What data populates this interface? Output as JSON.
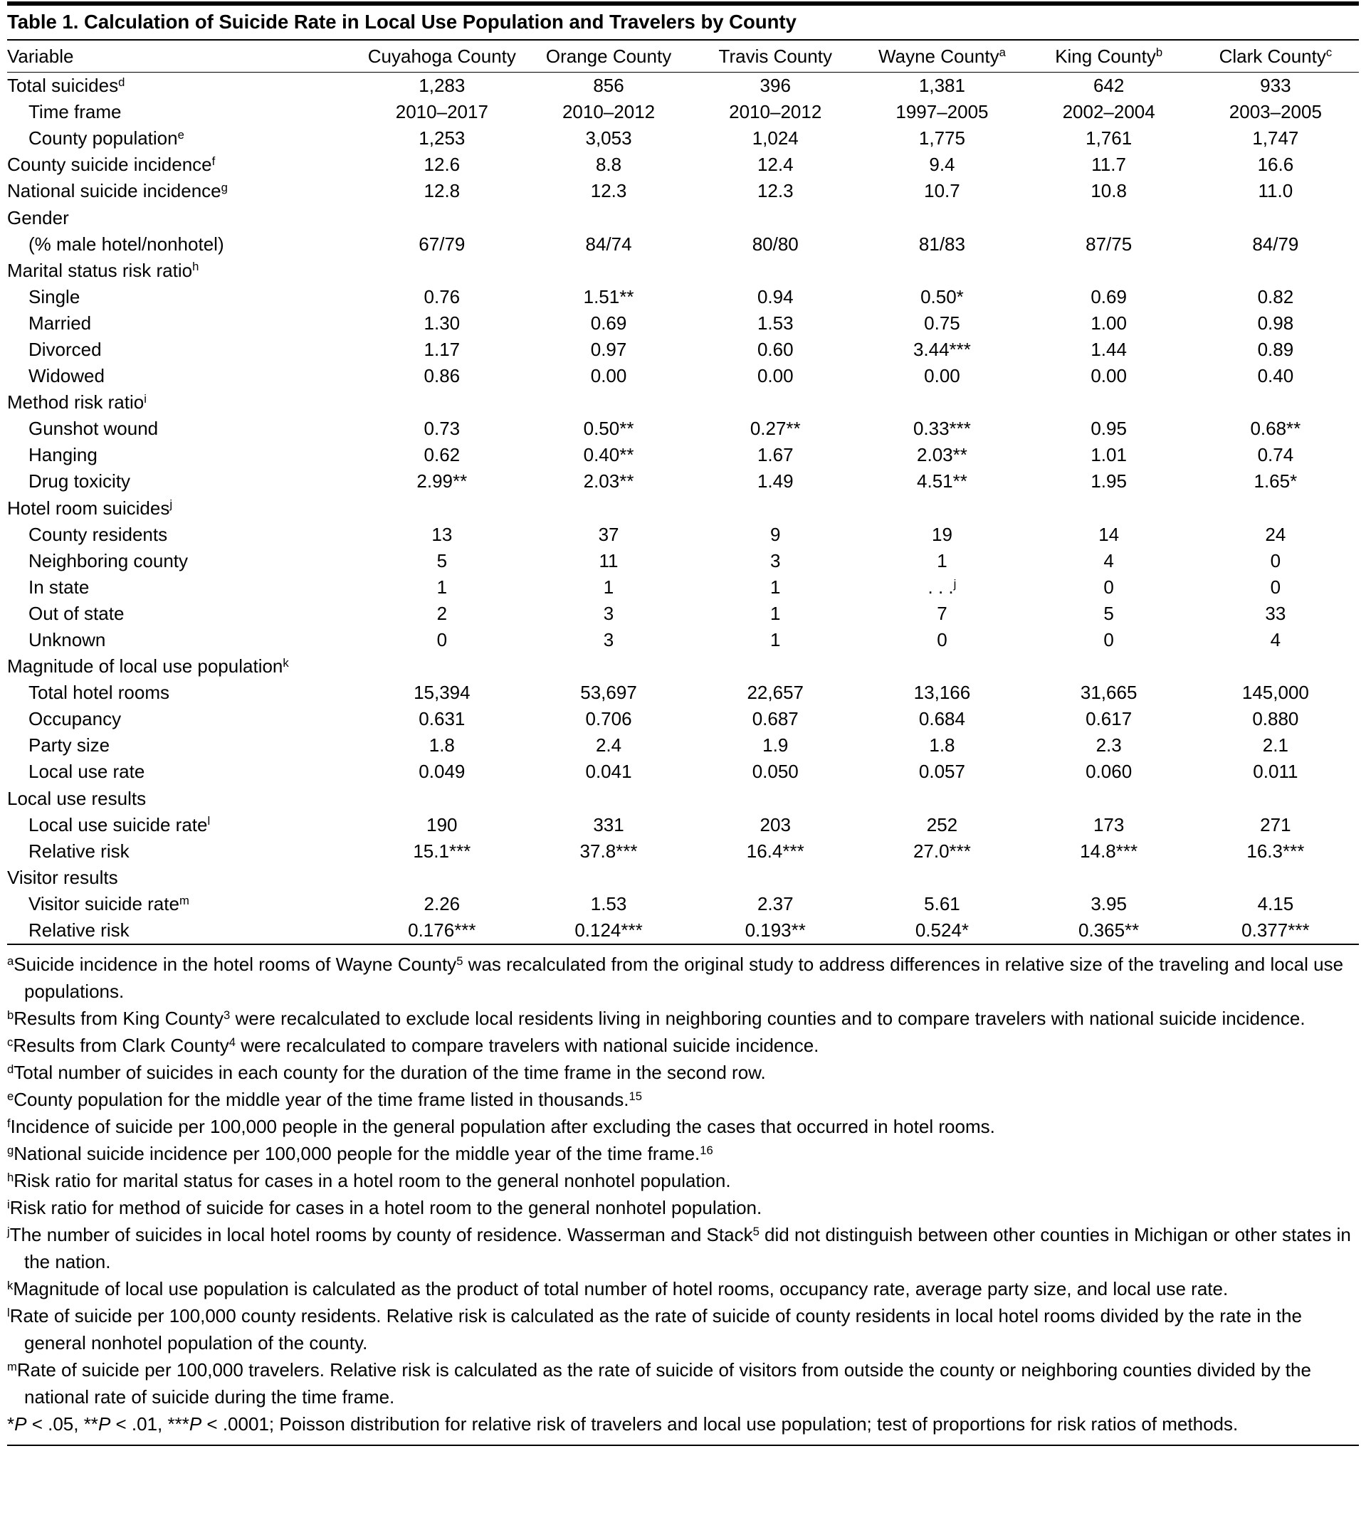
{
  "table": {
    "title": "Table 1. Calculation of Suicide Rate in Local Use Population and Travelers by County",
    "columns": [
      "Variable",
      "Cuyahoga County",
      "Orange County",
      "Travis County",
      "Wayne County^{a}",
      "King County^{b}",
      "Clark County^{c}"
    ],
    "rows": [
      {
        "label": "Total suicides^{d}",
        "indent": 0,
        "values": [
          "1,283",
          "856",
          "396",
          "1,381",
          "642",
          "933"
        ]
      },
      {
        "label": "Time frame",
        "indent": 1,
        "values": [
          "2010–2017",
          "2010–2012",
          "2010–2012",
          "1997–2005",
          "2002–2004",
          "2003–2005"
        ]
      },
      {
        "label": "County population^{e}",
        "indent": 1,
        "values": [
          "1,253",
          "3,053",
          "1,024",
          "1,775",
          "1,761",
          "1,747"
        ]
      },
      {
        "label": "County suicide incidence^{f}",
        "indent": 0,
        "values": [
          "12.6",
          "8.8",
          "12.4",
          "9.4",
          "11.7",
          "16.6"
        ]
      },
      {
        "label": "National suicide incidence^{g}",
        "indent": 0,
        "values": [
          "12.8",
          "12.3",
          "12.3",
          "10.7",
          "10.8",
          "11.0"
        ]
      },
      {
        "label": "Gender",
        "indent": 0,
        "section": true,
        "values": []
      },
      {
        "label": "(% male hotel/nonhotel)",
        "indent": 1,
        "values": [
          "67/79",
          "84/74",
          "80/80",
          "81/83",
          "87/75",
          "84/79"
        ]
      },
      {
        "label": "Marital status risk ratio^{h}",
        "indent": 0,
        "section": true,
        "values": []
      },
      {
        "label": "Single",
        "indent": 1,
        "values": [
          "0.76",
          "1.51**",
          "0.94",
          "0.50*",
          "0.69",
          "0.82"
        ]
      },
      {
        "label": "Married",
        "indent": 1,
        "values": [
          "1.30",
          "0.69",
          "1.53",
          "0.75",
          "1.00",
          "0.98"
        ]
      },
      {
        "label": "Divorced",
        "indent": 1,
        "values": [
          "1.17",
          "0.97",
          "0.60",
          "3.44***",
          "1.44",
          "0.89"
        ]
      },
      {
        "label": "Widowed",
        "indent": 1,
        "values": [
          "0.86",
          "0.00",
          "0.00",
          "0.00",
          "0.00",
          "0.40"
        ]
      },
      {
        "label": "Method risk ratio^{i}",
        "indent": 0,
        "section": true,
        "values": []
      },
      {
        "label": "Gunshot wound",
        "indent": 1,
        "values": [
          "0.73",
          "0.50**",
          "0.27**",
          "0.33***",
          "0.95",
          "0.68**"
        ]
      },
      {
        "label": "Hanging",
        "indent": 1,
        "values": [
          "0.62",
          "0.40**",
          "1.67",
          "2.03**",
          "1.01",
          "0.74"
        ]
      },
      {
        "label": "Drug toxicity",
        "indent": 1,
        "values": [
          "2.99**",
          "2.03**",
          "1.49",
          "4.51**",
          "1.95",
          "1.65*"
        ]
      },
      {
        "label": "Hotel room suicides^{j}",
        "indent": 0,
        "section": true,
        "values": []
      },
      {
        "label": "County residents",
        "indent": 1,
        "values": [
          "13",
          "37",
          "9",
          "19",
          "14",
          "24"
        ]
      },
      {
        "label": "Neighboring county",
        "indent": 1,
        "values": [
          "5",
          "11",
          "3",
          "1",
          "4",
          "0"
        ]
      },
      {
        "label": "In state",
        "indent": 1,
        "values": [
          "1",
          "1",
          "1",
          ". . .^{j}",
          "0",
          "0"
        ]
      },
      {
        "label": "Out of state",
        "indent": 1,
        "values": [
          "2",
          "3",
          "1",
          "7",
          "5",
          "33"
        ]
      },
      {
        "label": "Unknown",
        "indent": 1,
        "values": [
          "0",
          "3",
          "1",
          "0",
          "0",
          "4"
        ]
      },
      {
        "label": "Magnitude of local use population^{k}",
        "indent": 0,
        "section": true,
        "values": []
      },
      {
        "label": "Total hotel rooms",
        "indent": 1,
        "values": [
          "15,394",
          "53,697",
          "22,657",
          "13,166",
          "31,665",
          "145,000"
        ]
      },
      {
        "label": "Occupancy",
        "indent": 1,
        "values": [
          "0.631",
          "0.706",
          "0.687",
          "0.684",
          "0.617",
          "0.880"
        ]
      },
      {
        "label": "Party size",
        "indent": 1,
        "values": [
          "1.8",
          "2.4",
          "1.9",
          "1.8",
          "2.3",
          "2.1"
        ]
      },
      {
        "label": "Local use rate",
        "indent": 1,
        "values": [
          "0.049",
          "0.041",
          "0.050",
          "0.057",
          "0.060",
          "0.011"
        ]
      },
      {
        "label": "Local use results",
        "indent": 0,
        "section": true,
        "values": []
      },
      {
        "label": "Local use suicide rate^{l}",
        "indent": 1,
        "values": [
          "190",
          "331",
          "203",
          "252",
          "173",
          "271"
        ]
      },
      {
        "label": "Relative risk",
        "indent": 1,
        "values": [
          "15.1***",
          "37.8***",
          "16.4***",
          "27.0***",
          "14.8***",
          "16.3***"
        ]
      },
      {
        "label": "Visitor results",
        "indent": 0,
        "section": true,
        "values": []
      },
      {
        "label": "Visitor suicide rate^{m}",
        "indent": 1,
        "values": [
          "2.26",
          "1.53",
          "2.37",
          "5.61",
          "3.95",
          "4.15"
        ]
      },
      {
        "label": "Relative risk",
        "indent": 1,
        "values": [
          "0.176***",
          "0.124***",
          "0.193**",
          "0.524*",
          "0.365**",
          "0.377***"
        ]
      }
    ]
  },
  "footnotes": [
    "^{a}Suicide incidence in the hotel rooms of Wayne County^{5} was recalculated from the original study to address differences in relative size of the traveling and local use populations.",
    "^{b}Results from King County^{3} were recalculated to exclude local residents living in neighboring counties and to compare travelers with national suicide incidence.",
    "^{c}Results from Clark County^{4} were recalculated to compare travelers with national suicide incidence.",
    "^{d}Total number of suicides in each county for the duration of the time frame in the second row.",
    "^{e}County population for the middle year of the time frame listed in thousands.^{15}",
    "^{f}Incidence of suicide per 100,000 people in the general population after excluding the cases that occurred in hotel rooms.",
    "^{g}National suicide incidence per 100,000 people for the middle year of the time frame.^{16}",
    "^{h}Risk ratio for marital status for cases in a hotel room to the general nonhotel population.",
    "^{i}Risk ratio for method of suicide for cases in a hotel room to the general nonhotel population.",
    "^{j}The number of suicides in local hotel rooms by county of residence. Wasserman and Stack^{5} did not distinguish between other counties in Michigan or other states in the nation.",
    "^{k}Magnitude of local use population is calculated as the product of total number of hotel rooms, occupancy rate, average party size, and local use rate.",
    "^{l}Rate of suicide per 100,000 county residents. Relative risk is calculated as the rate of suicide of county residents in local hotel rooms divided by the rate in the general nonhotel population of the county.",
    "^{m}Rate of suicide per 100,000 travelers. Relative risk is calculated as the rate of suicide of visitors from outside the county or neighboring counties divided by the national rate of suicide during the time frame.",
    "*//P// < .05, **//P// < .01, ***//P// < .0001; Poisson distribution for relative risk of travelers and local use population; test of proportions for risk ratios of methods."
  ]
}
